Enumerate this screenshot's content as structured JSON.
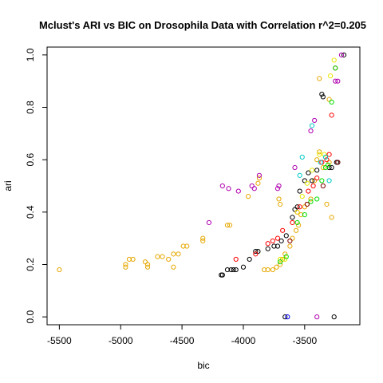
{
  "chart_data": {
    "type": "scatter",
    "title": "Mclust's ARI vs BIC on Drosophila Data with Correlation r^2=0.205",
    "xlabel": "bic",
    "ylabel": "ari",
    "xlim": [
      -5600,
      -3050
    ],
    "ylim": [
      -0.03,
      1.03
    ],
    "xticks": [
      -5500,
      -5000,
      -4500,
      -4000,
      -3500
    ],
    "xtick_labels": [
      "-5500",
      "-5000",
      "-4500",
      "-4000",
      "-3500"
    ],
    "yticks": [
      0.0,
      0.2,
      0.4,
      0.6,
      0.8,
      1.0
    ],
    "ytick_labels": [
      "0.0",
      "0.2",
      "0.4",
      "0.6",
      "0.8",
      "1.0"
    ],
    "grid": false,
    "colors": {
      "black": "#000000",
      "orange": "#e6a800",
      "purple": "#b000b0",
      "red": "#ff0000",
      "yellow": "#e8e800",
      "green": "#00e000",
      "cyan": "#00c8c8",
      "blue": "#0000ff",
      "darkred": "#800000"
    },
    "series": [
      {
        "color": "orange",
        "points": [
          [
            -5500,
            0.18
          ],
          [
            -4960,
            0.2
          ],
          [
            -4960,
            0.19
          ],
          [
            -4930,
            0.22
          ],
          [
            -4900,
            0.22
          ],
          [
            -4800,
            0.21
          ],
          [
            -4780,
            0.19
          ],
          [
            -4780,
            0.2
          ],
          [
            -4700,
            0.23
          ],
          [
            -4660,
            0.23
          ],
          [
            -4610,
            0.22
          ],
          [
            -4570,
            0.24
          ],
          [
            -4570,
            0.19
          ],
          [
            -4530,
            0.24
          ],
          [
            -4490,
            0.27
          ],
          [
            -4460,
            0.27
          ],
          [
            -4330,
            0.3
          ],
          [
            -4330,
            0.29
          ],
          [
            -4130,
            0.35
          ],
          [
            -4110,
            0.35
          ],
          [
            -3960,
            0.46
          ],
          [
            -3870,
            0.53
          ],
          [
            -3880,
            0.51
          ],
          [
            -3710,
            0.45
          ],
          [
            -3700,
            0.43
          ],
          [
            -3830,
            0.18
          ],
          [
            -3800,
            0.18
          ],
          [
            -3760,
            0.18
          ],
          [
            -3730,
            0.19
          ],
          [
            -3700,
            0.2
          ],
          [
            -3680,
            0.22
          ],
          [
            -3660,
            0.24
          ],
          [
            -3620,
            0.27
          ],
          [
            -3600,
            0.3
          ],
          [
            -3570,
            0.33
          ],
          [
            -3550,
            0.35
          ],
          [
            -3530,
            0.39
          ],
          [
            -3500,
            0.42
          ],
          [
            -3480,
            0.43
          ],
          [
            -3450,
            0.45
          ],
          [
            -3420,
            0.52
          ],
          [
            -3400,
            0.6
          ],
          [
            -3380,
            0.63
          ],
          [
            -3350,
            0.57
          ],
          [
            -3380,
            0.91
          ],
          [
            -3300,
            0.59
          ],
          [
            -3320,
            0.43
          ],
          [
            -3300,
            0.83
          ],
          [
            -3280,
            0.38
          ]
        ]
      },
      {
        "color": "black",
        "points": [
          [
            -4180,
            0.16
          ],
          [
            -4170,
            0.16
          ],
          [
            -4130,
            0.18
          ],
          [
            -4100,
            0.18
          ],
          [
            -4080,
            0.18
          ],
          [
            -4060,
            0.18
          ],
          [
            -4000,
            0.19
          ],
          [
            -3950,
            0.22
          ],
          [
            -3900,
            0.25
          ],
          [
            -3880,
            0.25
          ],
          [
            -3800,
            0.26
          ],
          [
            -3750,
            0.27
          ],
          [
            -3720,
            0.27
          ],
          [
            -3690,
            0.29
          ],
          [
            -3650,
            0.31
          ],
          [
            -3600,
            0.38
          ],
          [
            -3580,
            0.41
          ],
          [
            -3560,
            0.42
          ],
          [
            -3540,
            0.48
          ],
          [
            -3500,
            0.52
          ],
          [
            -3470,
            0.55
          ],
          [
            -3440,
            0.52
          ],
          [
            -3400,
            0.56
          ],
          [
            -3360,
            0.85
          ],
          [
            -3350,
            0.84
          ],
          [
            -3300,
            0.57
          ],
          [
            -3280,
            0.57
          ],
          [
            -3240,
            0.59
          ],
          [
            -3230,
            0.59
          ],
          [
            -3180,
            1.0
          ],
          [
            -3660,
            0.0
          ],
          [
            -3260,
            0.0
          ]
        ]
      },
      {
        "color": "purple",
        "points": [
          [
            -4280,
            0.36
          ],
          [
            -4170,
            0.5
          ],
          [
            -4120,
            0.49
          ],
          [
            -4040,
            0.48
          ],
          [
            -3930,
            0.5
          ],
          [
            -3910,
            0.49
          ],
          [
            -3870,
            0.54
          ],
          [
            -3720,
            0.49
          ],
          [
            -3710,
            0.5
          ],
          [
            -3580,
            0.57
          ],
          [
            -3450,
            0.71
          ],
          [
            -3420,
            0.75
          ],
          [
            -3400,
            0.0
          ],
          [
            -3250,
            0.9
          ],
          [
            -3230,
            0.9
          ],
          [
            -3200,
            1.0
          ]
        ]
      },
      {
        "color": "red",
        "points": [
          [
            -4060,
            0.22
          ],
          [
            -3900,
            0.24
          ],
          [
            -3800,
            0.28
          ],
          [
            -3760,
            0.29
          ],
          [
            -3720,
            0.3
          ],
          [
            -3680,
            0.33
          ],
          [
            -3600,
            0.36
          ],
          [
            -3560,
            0.4
          ],
          [
            -3540,
            0.42
          ],
          [
            -3470,
            0.48
          ],
          [
            -3430,
            0.5
          ],
          [
            -3400,
            0.53
          ],
          [
            -3360,
            0.59
          ],
          [
            -3320,
            0.6
          ],
          [
            -3300,
            0.62
          ],
          [
            -3280,
            0.77
          ],
          [
            -3250,
            0.95
          ]
        ]
      },
      {
        "color": "yellow",
        "points": [
          [
            -3700,
            0.22
          ],
          [
            -3660,
            0.22
          ],
          [
            -3560,
            0.4
          ],
          [
            -3520,
            0.46
          ],
          [
            -3480,
            0.51
          ],
          [
            -3440,
            0.56
          ],
          [
            -3380,
            0.62
          ],
          [
            -3340,
            0.62
          ],
          [
            -3290,
            0.92
          ],
          [
            -3260,
            0.98
          ]
        ]
      },
      {
        "color": "green",
        "points": [
          [
            -3700,
            0.21
          ],
          [
            -3650,
            0.23
          ],
          [
            -3560,
            0.36
          ],
          [
            -3500,
            0.39
          ],
          [
            -3450,
            0.44
          ],
          [
            -3400,
            0.45
          ],
          [
            -3360,
            0.52
          ],
          [
            -3330,
            0.57
          ],
          [
            -3310,
            0.58
          ],
          [
            -3280,
            0.82
          ],
          [
            -3250,
            0.95
          ]
        ]
      },
      {
        "color": "cyan",
        "points": [
          [
            -3540,
            0.54
          ],
          [
            -3520,
            0.61
          ],
          [
            -3440,
            0.73
          ],
          [
            -3370,
            0.59
          ],
          [
            -3330,
            0.61
          ],
          [
            -3300,
            0.52
          ]
        ]
      },
      {
        "color": "blue",
        "points": [
          [
            -3640,
            0.0
          ]
        ]
      },
      {
        "color": "darkred",
        "points": [
          [
            -3620,
            0.29
          ],
          [
            -3480,
            0.43
          ],
          [
            -3350,
            0.5
          ],
          [
            -3230,
            0.59
          ]
        ]
      }
    ]
  }
}
